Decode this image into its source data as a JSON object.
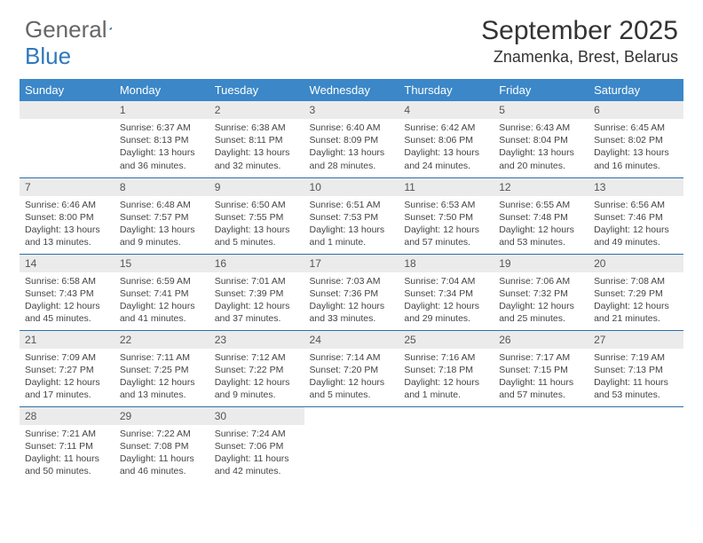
{
  "logo": {
    "text1": "General",
    "text2": "Blue"
  },
  "title": "September 2025",
  "location": "Znamenka, Brest, Belarus",
  "colors": {
    "header_bg": "#3b87c8",
    "header_text": "#ffffff",
    "daynum_bg": "#ebebeb",
    "row_border": "#2f6fa8",
    "logo_blue": "#2f78bd",
    "body_text": "#444444",
    "title_text": "#333333",
    "page_bg": "#ffffff"
  },
  "daysOfWeek": [
    "Sunday",
    "Monday",
    "Tuesday",
    "Wednesday",
    "Thursday",
    "Friday",
    "Saturday"
  ],
  "weeks": [
    [
      {
        "n": "",
        "sr": "",
        "ss": "",
        "dl": ""
      },
      {
        "n": "1",
        "sr": "6:37 AM",
        "ss": "8:13 PM",
        "dl": "13 hours and 36 minutes."
      },
      {
        "n": "2",
        "sr": "6:38 AM",
        "ss": "8:11 PM",
        "dl": "13 hours and 32 minutes."
      },
      {
        "n": "3",
        "sr": "6:40 AM",
        "ss": "8:09 PM",
        "dl": "13 hours and 28 minutes."
      },
      {
        "n": "4",
        "sr": "6:42 AM",
        "ss": "8:06 PM",
        "dl": "13 hours and 24 minutes."
      },
      {
        "n": "5",
        "sr": "6:43 AM",
        "ss": "8:04 PM",
        "dl": "13 hours and 20 minutes."
      },
      {
        "n": "6",
        "sr": "6:45 AM",
        "ss": "8:02 PM",
        "dl": "13 hours and 16 minutes."
      }
    ],
    [
      {
        "n": "7",
        "sr": "6:46 AM",
        "ss": "8:00 PM",
        "dl": "13 hours and 13 minutes."
      },
      {
        "n": "8",
        "sr": "6:48 AM",
        "ss": "7:57 PM",
        "dl": "13 hours and 9 minutes."
      },
      {
        "n": "9",
        "sr": "6:50 AM",
        "ss": "7:55 PM",
        "dl": "13 hours and 5 minutes."
      },
      {
        "n": "10",
        "sr": "6:51 AM",
        "ss": "7:53 PM",
        "dl": "13 hours and 1 minute."
      },
      {
        "n": "11",
        "sr": "6:53 AM",
        "ss": "7:50 PM",
        "dl": "12 hours and 57 minutes."
      },
      {
        "n": "12",
        "sr": "6:55 AM",
        "ss": "7:48 PM",
        "dl": "12 hours and 53 minutes."
      },
      {
        "n": "13",
        "sr": "6:56 AM",
        "ss": "7:46 PM",
        "dl": "12 hours and 49 minutes."
      }
    ],
    [
      {
        "n": "14",
        "sr": "6:58 AM",
        "ss": "7:43 PM",
        "dl": "12 hours and 45 minutes."
      },
      {
        "n": "15",
        "sr": "6:59 AM",
        "ss": "7:41 PM",
        "dl": "12 hours and 41 minutes."
      },
      {
        "n": "16",
        "sr": "7:01 AM",
        "ss": "7:39 PM",
        "dl": "12 hours and 37 minutes."
      },
      {
        "n": "17",
        "sr": "7:03 AM",
        "ss": "7:36 PM",
        "dl": "12 hours and 33 minutes."
      },
      {
        "n": "18",
        "sr": "7:04 AM",
        "ss": "7:34 PM",
        "dl": "12 hours and 29 minutes."
      },
      {
        "n": "19",
        "sr": "7:06 AM",
        "ss": "7:32 PM",
        "dl": "12 hours and 25 minutes."
      },
      {
        "n": "20",
        "sr": "7:08 AM",
        "ss": "7:29 PM",
        "dl": "12 hours and 21 minutes."
      }
    ],
    [
      {
        "n": "21",
        "sr": "7:09 AM",
        "ss": "7:27 PM",
        "dl": "12 hours and 17 minutes."
      },
      {
        "n": "22",
        "sr": "7:11 AM",
        "ss": "7:25 PM",
        "dl": "12 hours and 13 minutes."
      },
      {
        "n": "23",
        "sr": "7:12 AM",
        "ss": "7:22 PM",
        "dl": "12 hours and 9 minutes."
      },
      {
        "n": "24",
        "sr": "7:14 AM",
        "ss": "7:20 PM",
        "dl": "12 hours and 5 minutes."
      },
      {
        "n": "25",
        "sr": "7:16 AM",
        "ss": "7:18 PM",
        "dl": "12 hours and 1 minute."
      },
      {
        "n": "26",
        "sr": "7:17 AM",
        "ss": "7:15 PM",
        "dl": "11 hours and 57 minutes."
      },
      {
        "n": "27",
        "sr": "7:19 AM",
        "ss": "7:13 PM",
        "dl": "11 hours and 53 minutes."
      }
    ],
    [
      {
        "n": "28",
        "sr": "7:21 AM",
        "ss": "7:11 PM",
        "dl": "11 hours and 50 minutes."
      },
      {
        "n": "29",
        "sr": "7:22 AM",
        "ss": "7:08 PM",
        "dl": "11 hours and 46 minutes."
      },
      {
        "n": "30",
        "sr": "7:24 AM",
        "ss": "7:06 PM",
        "dl": "11 hours and 42 minutes."
      },
      {
        "n": "",
        "sr": "",
        "ss": "",
        "dl": ""
      },
      {
        "n": "",
        "sr": "",
        "ss": "",
        "dl": ""
      },
      {
        "n": "",
        "sr": "",
        "ss": "",
        "dl": ""
      },
      {
        "n": "",
        "sr": "",
        "ss": "",
        "dl": ""
      }
    ]
  ],
  "labels": {
    "sunrise": "Sunrise:",
    "sunset": "Sunset:",
    "daylight": "Daylight:"
  }
}
